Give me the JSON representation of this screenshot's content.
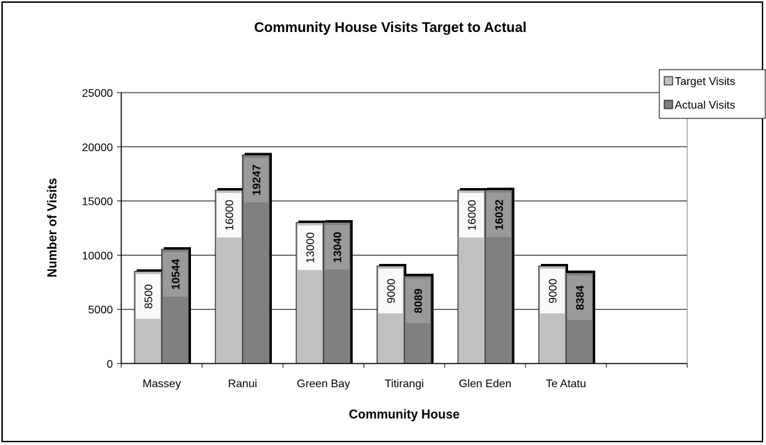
{
  "chart_data": {
    "type": "bar",
    "title": "Community House Visits Target to Actual",
    "xlabel": "Community House",
    "ylabel": "Number of Visits",
    "categories": [
      "Massey",
      "Ranui",
      "Green Bay",
      "Titirangi",
      "Glen Eden",
      "Te Atatu",
      ""
    ],
    "series": [
      {
        "name": "Target Visits",
        "values": [
          8500,
          16000,
          13000,
          9000,
          16000,
          9000,
          null
        ],
        "color": "#c0c0c0"
      },
      {
        "name": "Actual Visits",
        "values": [
          10544,
          19247,
          13040,
          8089,
          16032,
          8384,
          null
        ],
        "color": "#808080"
      }
    ],
    "ylim": [
      0,
      25000
    ],
    "yticks": [
      0,
      5000,
      10000,
      15000,
      20000,
      25000
    ],
    "grid": true,
    "legend": "top-right",
    "data_labels": true
  }
}
